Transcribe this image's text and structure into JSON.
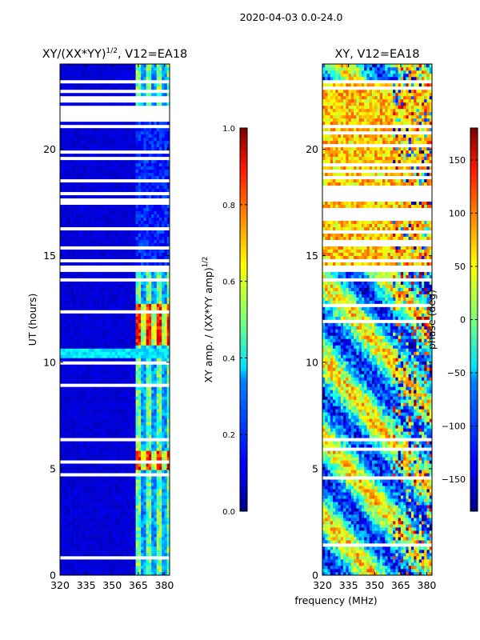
{
  "suptitle": "2020-04-03 0.0-24.0",
  "chart_data": [
    {
      "type": "heatmap",
      "title_main": "XY/(XX*YY)",
      "title_exp": "1/2",
      "title_rest": ", V12=EA18",
      "ylabel": "UT (hours)",
      "xlim": [
        320,
        383
      ],
      "ylim": [
        0,
        24
      ],
      "xticks": [
        320,
        335,
        350,
        365,
        380
      ],
      "yticks": [
        0,
        5,
        10,
        15,
        20
      ],
      "value_range": [
        0.0,
        1.0
      ],
      "dominant_level_blank_band_hours": [
        14.2,
        24.0
      ],
      "high_amplitude_channels_mhz": [
        363,
        383
      ],
      "colorbar": {
        "label_main": "XY amp. / (XX*YY amp)",
        "label_exp": "1/2",
        "ticks": [
          0.0,
          0.2,
          0.4,
          0.6,
          0.8,
          1.0
        ],
        "tick_labels": [
          "0.0",
          "0.2",
          "0.4",
          "0.6",
          "0.8",
          "1.0"
        ],
        "colormap": "jet"
      }
    },
    {
      "type": "heatmap",
      "title": "XY, V12=EA18",
      "xlim": [
        320,
        383
      ],
      "ylim": [
        0,
        24
      ],
      "xticks": [
        320,
        335,
        350,
        365,
        380
      ],
      "yticks": [
        0,
        5,
        10,
        15,
        20
      ],
      "value_range": [
        -180,
        180
      ],
      "colorbar": {
        "label": "phase (deg)",
        "ticks": [
          -150,
          -100,
          -50,
          0,
          50,
          100,
          150
        ],
        "tick_labels": [
          "−150",
          "−100",
          "−50",
          "0",
          "50",
          "100",
          "150"
        ],
        "colormap": "jet"
      }
    }
  ],
  "shared_xlabel": "frequency (MHz)"
}
